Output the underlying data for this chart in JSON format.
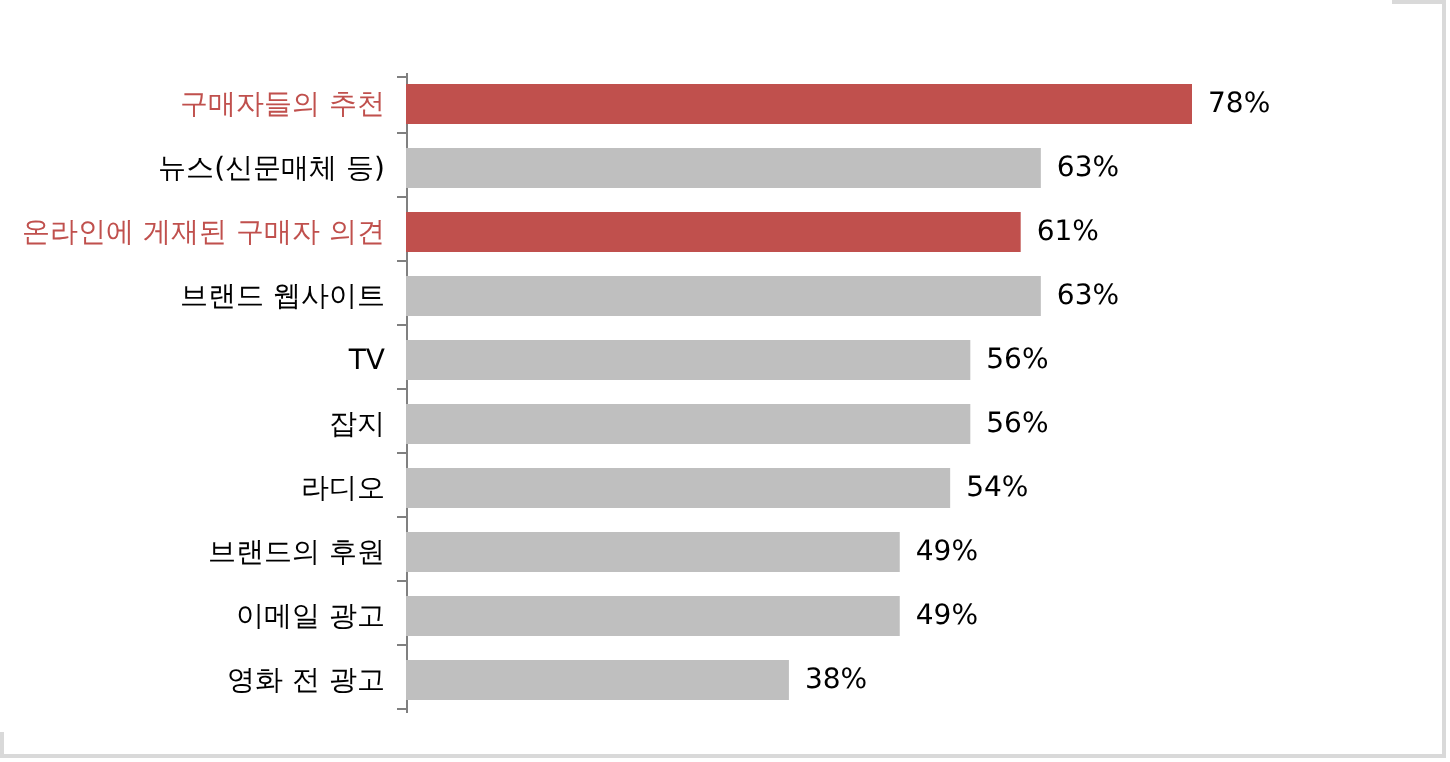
{
  "chart_data": {
    "type": "bar",
    "orientation": "horizontal",
    "categories": [
      "구매자들의 추천",
      "뉴스(신문매체 등)",
      "온라인에 게재된 구매자 의견",
      "브랜드 웹사이트",
      "TV",
      "잡지",
      "라디오",
      "브랜드의 후원",
      "이메일 광고",
      "영화 전 광고"
    ],
    "values": [
      78,
      63,
      61,
      63,
      56,
      56,
      54,
      49,
      49,
      38
    ],
    "colors": [
      "#c0504d",
      "#bfbfbf",
      "#c0504d",
      "#bfbfbf",
      "#bfbfbf",
      "#bfbfbf",
      "#bfbfbf",
      "#bfbfbf",
      "#bfbfbf",
      "#bfbfbf"
    ],
    "value_labels": [
      "78%",
      "63%",
      "61%",
      "63%",
      "56%",
      "56%",
      "54%",
      "49%",
      "49%",
      "38%"
    ]
  }
}
